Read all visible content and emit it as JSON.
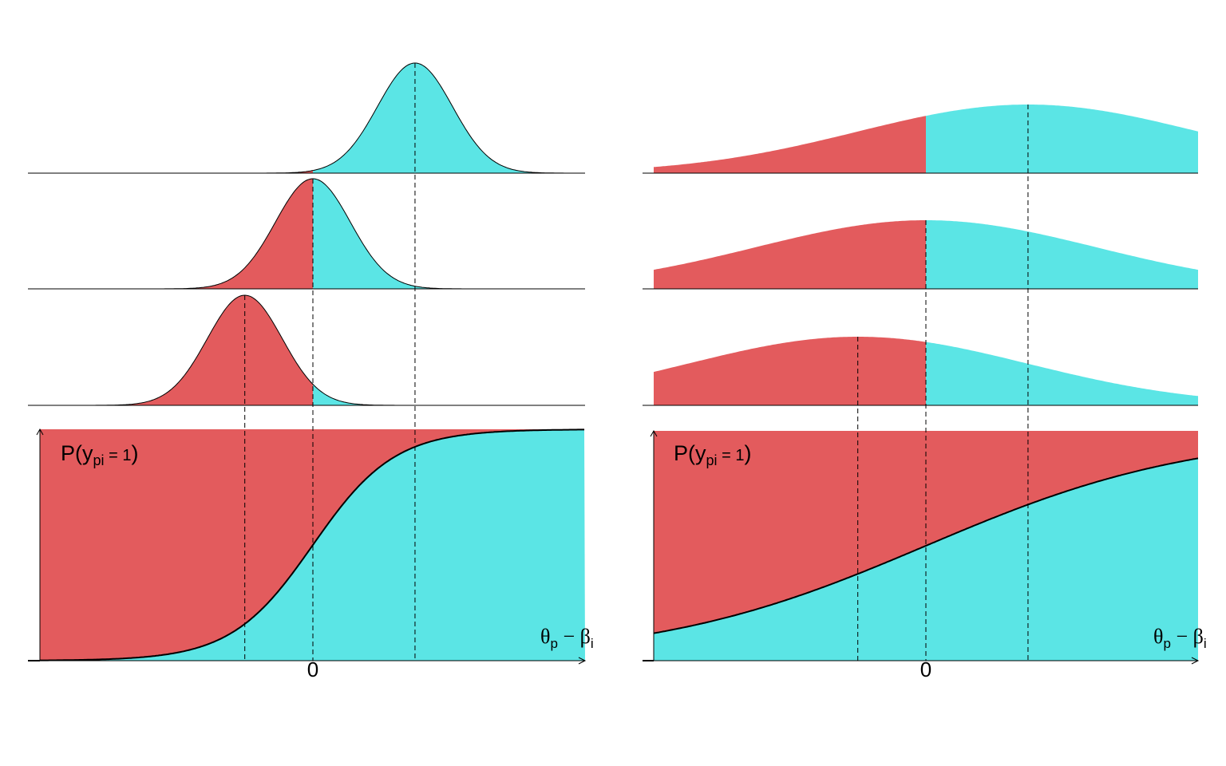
{
  "colors": {
    "red": "#E35B5D",
    "cyan": "#5BE5E5",
    "line": "#000000",
    "background": "#FFFFFF"
  },
  "labels": {
    "prob_label": "P(y_pi = 1)",
    "prob_P": "P",
    "prob_y": "y",
    "prob_sub": "pi",
    "prob_eq": " = 1",
    "x_axis_label": "θp − βi",
    "x_theta": "θ",
    "x_theta_sub": "p",
    "x_minus": " − ",
    "x_beta": "β",
    "x_beta_sub": "i",
    "zero_tick": "0"
  },
  "panels": [
    {
      "id": "left",
      "description_visible": "steep logistic curve",
      "logistic_scale": 0.6,
      "densities": [
        {
          "mean": 1.5,
          "sd": 0.55,
          "shape": "gaussian"
        },
        {
          "mean": 0.0,
          "sd": 0.55,
          "shape": "gaussian"
        },
        {
          "mean": -1.0,
          "sd": 0.55,
          "shape": "gaussian"
        }
      ],
      "guide_lines_x": [
        -1.0,
        0.0,
        1.5
      ]
    },
    {
      "id": "right",
      "description_visible": "shallow logistic curve",
      "logistic_scale": 2.0,
      "densities": [
        {
          "mean": 1.5,
          "sd": 2.5,
          "shape": "gaussian"
        },
        {
          "mean": 0.0,
          "sd": 2.5,
          "shape": "gaussian"
        },
        {
          "mean": -1.0,
          "sd": 2.5,
          "shape": "gaussian"
        }
      ],
      "guide_lines_x": [
        -1.0,
        0.0,
        1.5
      ]
    }
  ]
}
